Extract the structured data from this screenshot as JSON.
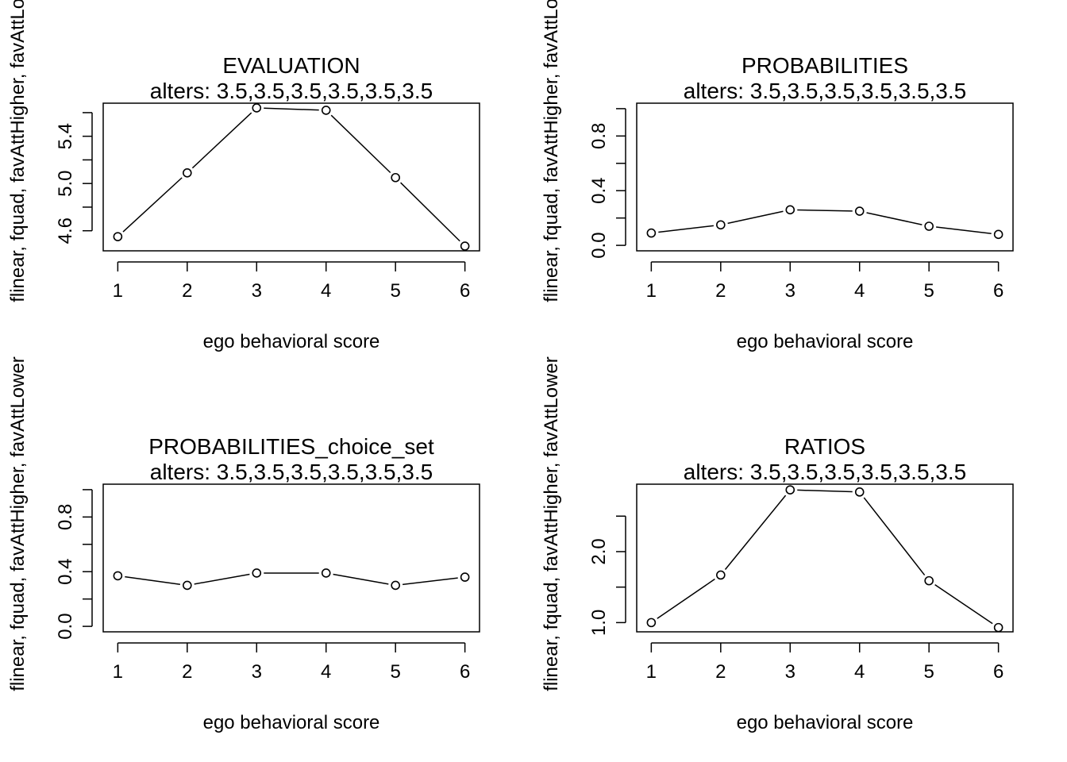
{
  "ylabel": "flinear, fquad, favAttHigher, favAttLower",
  "chart_data": [
    {
      "type": "line",
      "title": "EVALUATION",
      "subtitle": "alters: 3.5,3.5,3.5,3.5,3.5,3.5",
      "xlabel": "ego behavioral score",
      "ylabel": "flinear, fquad, favAttHigher, favAttLower",
      "x": [
        1,
        2,
        3,
        4,
        5,
        6
      ],
      "values": [
        4.55,
        5.09,
        5.64,
        5.62,
        5.05,
        4.47
      ],
      "ylim": [
        4.43,
        5.68
      ],
      "yticks": [
        4.6,
        5.0,
        5.4
      ],
      "yticks_minor": [
        4.8,
        5.2,
        5.6
      ],
      "ytick_labels": [
        "4.6",
        "5.0",
        "5.4"
      ],
      "xticks": [
        1,
        2,
        3,
        4,
        5,
        6
      ],
      "xtick_labels": [
        "1",
        "2",
        "3",
        "4",
        "5",
        "6"
      ]
    },
    {
      "type": "line",
      "title": "PROBABILITIES",
      "subtitle": "alters: 3.5,3.5,3.5,3.5,3.5,3.5",
      "xlabel": "ego behavioral score",
      "ylabel": "flinear, fquad, favAttHigher, favAttLower",
      "x": [
        1,
        2,
        3,
        4,
        5,
        6
      ],
      "values": [
        0.09,
        0.15,
        0.26,
        0.25,
        0.14,
        0.08
      ],
      "ylim": [
        -0.04,
        1.04
      ],
      "yticks": [
        0.0,
        0.4,
        0.8
      ],
      "yticks_minor": [
        0.2,
        0.6,
        1.0
      ],
      "ytick_labels": [
        "0.0",
        "0.4",
        "0.8"
      ],
      "xticks": [
        1,
        2,
        3,
        4,
        5,
        6
      ],
      "xtick_labels": [
        "1",
        "2",
        "3",
        "4",
        "5",
        "6"
      ]
    },
    {
      "type": "line",
      "title": "PROBABILITIES_choice_set",
      "subtitle": "alters: 3.5,3.5,3.5,3.5,3.5,3.5",
      "xlabel": "ego behavioral score",
      "ylabel": "flinear, fquad, favAttHigher, favAttLower",
      "x": [
        1,
        2,
        3,
        4,
        5,
        6
      ],
      "values": [
        0.37,
        0.3,
        0.39,
        0.39,
        0.3,
        0.36
      ],
      "ylim": [
        -0.04,
        1.04
      ],
      "yticks": [
        0.0,
        0.4,
        0.8
      ],
      "yticks_minor": [
        0.2,
        0.6,
        1.0
      ],
      "ytick_labels": [
        "0.0",
        "0.4",
        "0.8"
      ],
      "xticks": [
        1,
        2,
        3,
        4,
        5,
        6
      ],
      "xtick_labels": [
        "1",
        "2",
        "3",
        "4",
        "5",
        "6"
      ]
    },
    {
      "type": "line",
      "title": "RATIOS",
      "subtitle": "alters: 3.5,3.5,3.5,3.5,3.5,3.5",
      "xlabel": "ego behavioral score",
      "ylabel": "flinear, fquad, favAttHigher, favAttLower",
      "x": [
        1,
        2,
        3,
        4,
        5,
        6
      ],
      "values": [
        1.0,
        1.67,
        2.87,
        2.84,
        1.59,
        0.93
      ],
      "ylim": [
        0.87,
        2.95
      ],
      "yticks": [
        1.0,
        2.0
      ],
      "yticks_minor": [
        1.5,
        2.5
      ],
      "ytick_labels": [
        "1.0",
        "2.0"
      ],
      "xticks": [
        1,
        2,
        3,
        4,
        5,
        6
      ],
      "xtick_labels": [
        "1",
        "2",
        "3",
        "4",
        "5",
        "6"
      ]
    }
  ]
}
